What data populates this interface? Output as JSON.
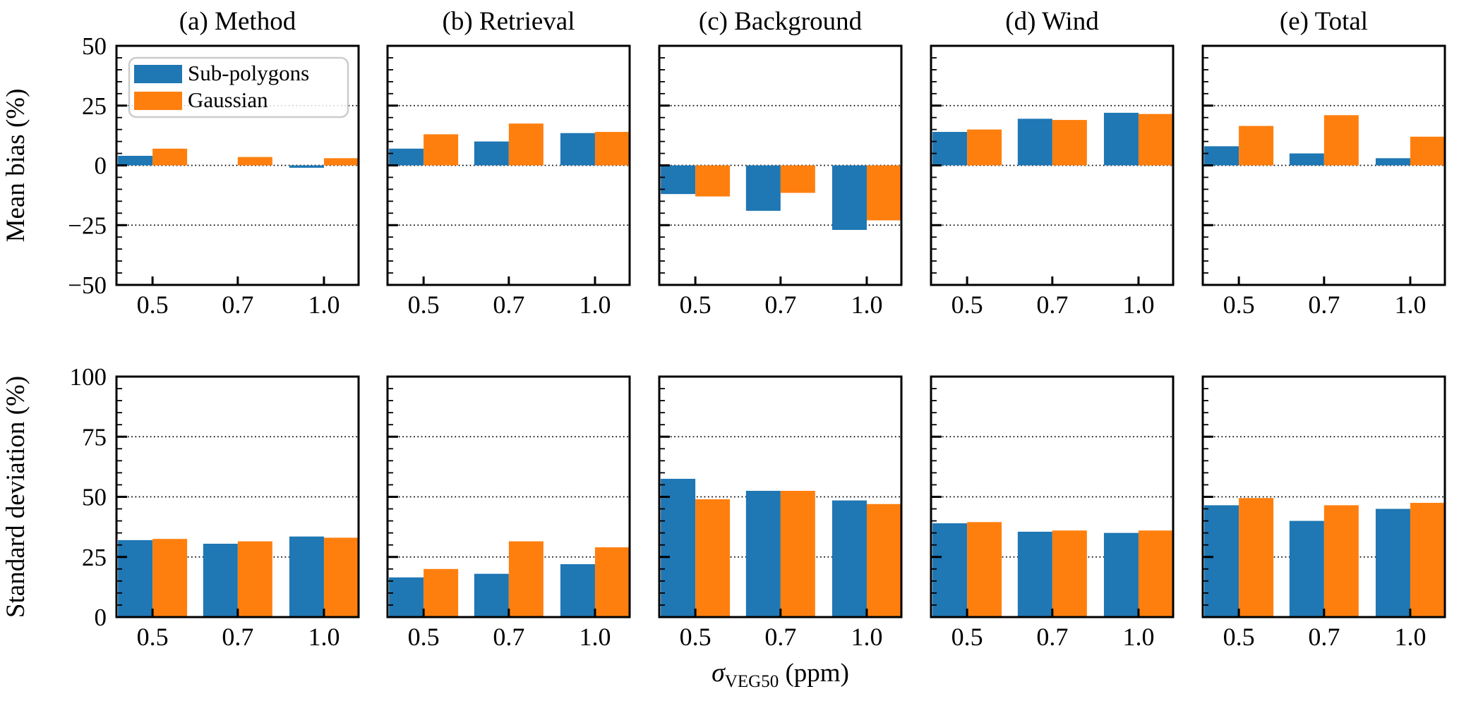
{
  "chart_data": {
    "type": "bar",
    "background": "#ffffff",
    "grid": "dotted-horizontal",
    "categories": [
      "0.5",
      "0.7",
      "1.0"
    ],
    "xlabel": {
      "sigma": "σ",
      "subscript": "VEG50",
      "unit": " (ppm)"
    },
    "legend": {
      "position": "upper-left-of-first-panel",
      "entries": [
        {
          "name": "Sub-polygons",
          "color": "#1f77b4"
        },
        {
          "name": "Gaussian",
          "color": "#ff7f0e"
        }
      ]
    },
    "rows": [
      {
        "ylabel": "Mean bias (%)",
        "ylim": [
          -50,
          50
        ],
        "minor_tick_step": 5,
        "yticks": [
          {
            "v": -50,
            "label": "−50"
          },
          {
            "v": -25,
            "label": "−25"
          },
          {
            "v": 0,
            "label": "0"
          },
          {
            "v": 25,
            "label": "25"
          },
          {
            "v": 50,
            "label": "50"
          }
        ],
        "panels": [
          {
            "title": "(a) Method",
            "series": [
              {
                "name": "Sub-polygons",
                "values": [
                  4,
                  0,
                  -1
                ]
              },
              {
                "name": "Gaussian",
                "values": [
                  7,
                  3.5,
                  3
                ]
              }
            ]
          },
          {
            "title": "(b) Retrieval",
            "series": [
              {
                "name": "Sub-polygons",
                "values": [
                  7,
                  10,
                  13.5
                ]
              },
              {
                "name": "Gaussian",
                "values": [
                  13,
                  17.5,
                  14
                ]
              }
            ]
          },
          {
            "title": "(c) Background",
            "series": [
              {
                "name": "Sub-polygons",
                "values": [
                  -12,
                  -19,
                  -27
                ]
              },
              {
                "name": "Gaussian",
                "values": [
                  -13,
                  -11.5,
                  -23
                ]
              }
            ]
          },
          {
            "title": "(d) Wind",
            "series": [
              {
                "name": "Sub-polygons",
                "values": [
                  14,
                  19.5,
                  22
                ]
              },
              {
                "name": "Gaussian",
                "values": [
                  15,
                  19,
                  21.5
                ]
              }
            ]
          },
          {
            "title": "(e) Total",
            "series": [
              {
                "name": "Sub-polygons",
                "values": [
                  8,
                  5,
                  3
                ]
              },
              {
                "name": "Gaussian",
                "values": [
                  16.5,
                  21,
                  12
                ]
              }
            ]
          }
        ]
      },
      {
        "ylabel": "Standard deviation (%)",
        "ylim": [
          0,
          100
        ],
        "minor_tick_step": 5,
        "yticks": [
          {
            "v": 0,
            "label": "0"
          },
          {
            "v": 25,
            "label": "25"
          },
          {
            "v": 50,
            "label": "50"
          },
          {
            "v": 75,
            "label": "75"
          },
          {
            "v": 100,
            "label": "100"
          }
        ],
        "panels": [
          {
            "title": "",
            "series": [
              {
                "name": "Sub-polygons",
                "values": [
                  32,
                  30.5,
                  33.5
                ]
              },
              {
                "name": "Gaussian",
                "values": [
                  32.5,
                  31.5,
                  33
                ]
              }
            ]
          },
          {
            "title": "",
            "series": [
              {
                "name": "Sub-polygons",
                "values": [
                  16.5,
                  18,
                  22
                ]
              },
              {
                "name": "Gaussian",
                "values": [
                  20,
                  31.5,
                  29
                ]
              }
            ]
          },
          {
            "title": "",
            "series": [
              {
                "name": "Sub-polygons",
                "values": [
                  57.5,
                  52.5,
                  48.5
                ]
              },
              {
                "name": "Gaussian",
                "values": [
                  49,
                  52.5,
                  47
                ]
              }
            ]
          },
          {
            "title": "",
            "series": [
              {
                "name": "Sub-polygons",
                "values": [
                  39,
                  35.5,
                  35
                ]
              },
              {
                "name": "Gaussian",
                "values": [
                  39.5,
                  36,
                  36
                ]
              }
            ]
          },
          {
            "title": "",
            "series": [
              {
                "name": "Sub-polygons",
                "values": [
                  46.5,
                  40,
                  45
                ]
              },
              {
                "name": "Gaussian",
                "values": [
                  49.5,
                  46.5,
                  47.5
                ]
              }
            ]
          }
        ]
      }
    ]
  }
}
